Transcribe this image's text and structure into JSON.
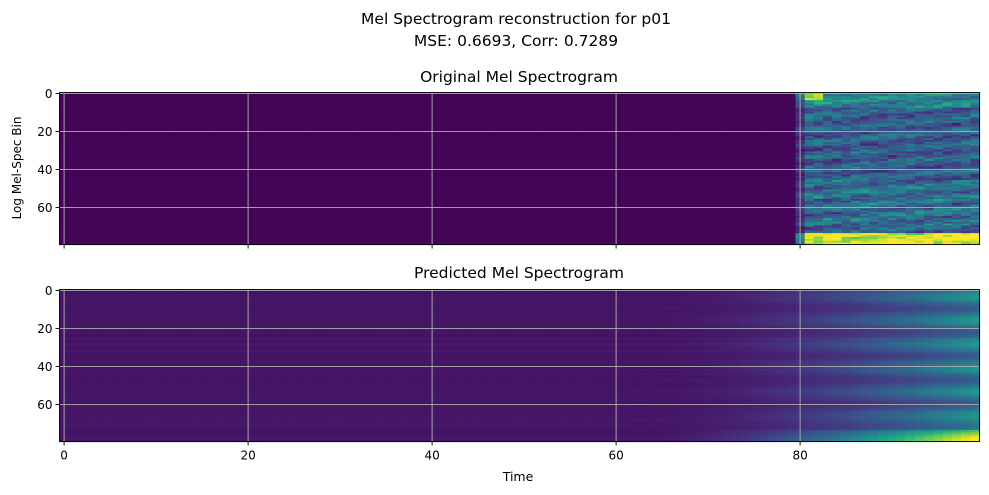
{
  "figure": {
    "title_line1": "Mel Spectrogram reconstruction for p01",
    "title_line2": "MSE: 0.6693, Corr: 0.7289"
  },
  "chart_data": [
    {
      "type": "heatmap",
      "title": "Original Mel Spectrogram",
      "xlabel": "",
      "ylabel": "Log Mel-Spec Bin",
      "xlim": [
        0,
        99
      ],
      "ylim": [
        0,
        79
      ],
      "y_inverted": true,
      "x_ticks": [
        0,
        20,
        40,
        60,
        80
      ],
      "x_tick_labels_visible": false,
      "y_ticks": [
        0,
        20,
        40,
        60
      ],
      "grid": true,
      "colormap": "viridis",
      "value_range": [
        0,
        1
      ],
      "silent_until_time": 80,
      "description_of_values": "near-zero energy for time < 80; speech energy for time >= 80 with strong low-frequency band near bins 74-79"
    },
    {
      "type": "heatmap",
      "title": "Predicted Mel Spectrogram",
      "xlabel": "Time",
      "ylabel": "",
      "xlim": [
        0,
        99
      ],
      "ylim": [
        0,
        79
      ],
      "y_inverted": true,
      "x_ticks": [
        0,
        20,
        40,
        60,
        80
      ],
      "x_tick_labels_visible": true,
      "y_ticks": [
        0,
        20,
        40,
        60
      ],
      "grid": true,
      "colormap": "viridis",
      "value_range": [
        0,
        1
      ],
      "ramp_start_time": 62,
      "description_of_values": "smooth energy ramp beginning around time 62 and brightening toward time 99, strongest near bins 70-79"
    }
  ]
}
